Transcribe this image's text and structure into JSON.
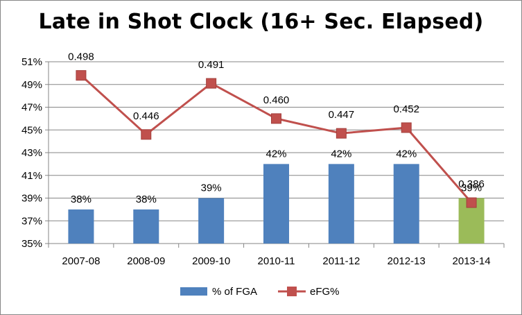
{
  "chart_data": {
    "type": "bar",
    "title": "Late in Shot Clock (16+ Sec. Elapsed)",
    "categories": [
      "2007-08",
      "2008-09",
      "2009-10",
      "2010-11",
      "2011-12",
      "2012-13",
      "2013-14"
    ],
    "ylim": [
      0.35,
      0.51
    ],
    "y_ticks": [
      0.35,
      0.37,
      0.39,
      0.41,
      0.43,
      0.45,
      0.47,
      0.49,
      0.51
    ],
    "y_tick_labels": [
      "35%",
      "37%",
      "39%",
      "41%",
      "43%",
      "45%",
      "47%",
      "49%",
      "51%"
    ],
    "grid": "horizontal major gridlines",
    "legend_position": "bottom",
    "series": [
      {
        "name": "% of FGA",
        "type": "bar",
        "values": [
          0.38,
          0.38,
          0.39,
          0.42,
          0.42,
          0.42,
          0.39
        ],
        "labels": [
          "38%",
          "38%",
          "39%",
          "42%",
          "42%",
          "42%",
          "39%"
        ],
        "color": "#4f81bd",
        "highlight_color": "#9bbb59",
        "highlight_index": 6
      },
      {
        "name": "eFG%",
        "type": "line",
        "values": [
          0.498,
          0.446,
          0.491,
          0.46,
          0.447,
          0.452,
          0.386
        ],
        "labels": [
          "0.498",
          "0.446",
          "0.491",
          "0.460",
          "0.447",
          "0.452",
          "0.386"
        ],
        "color": "#c0504d"
      }
    ]
  }
}
